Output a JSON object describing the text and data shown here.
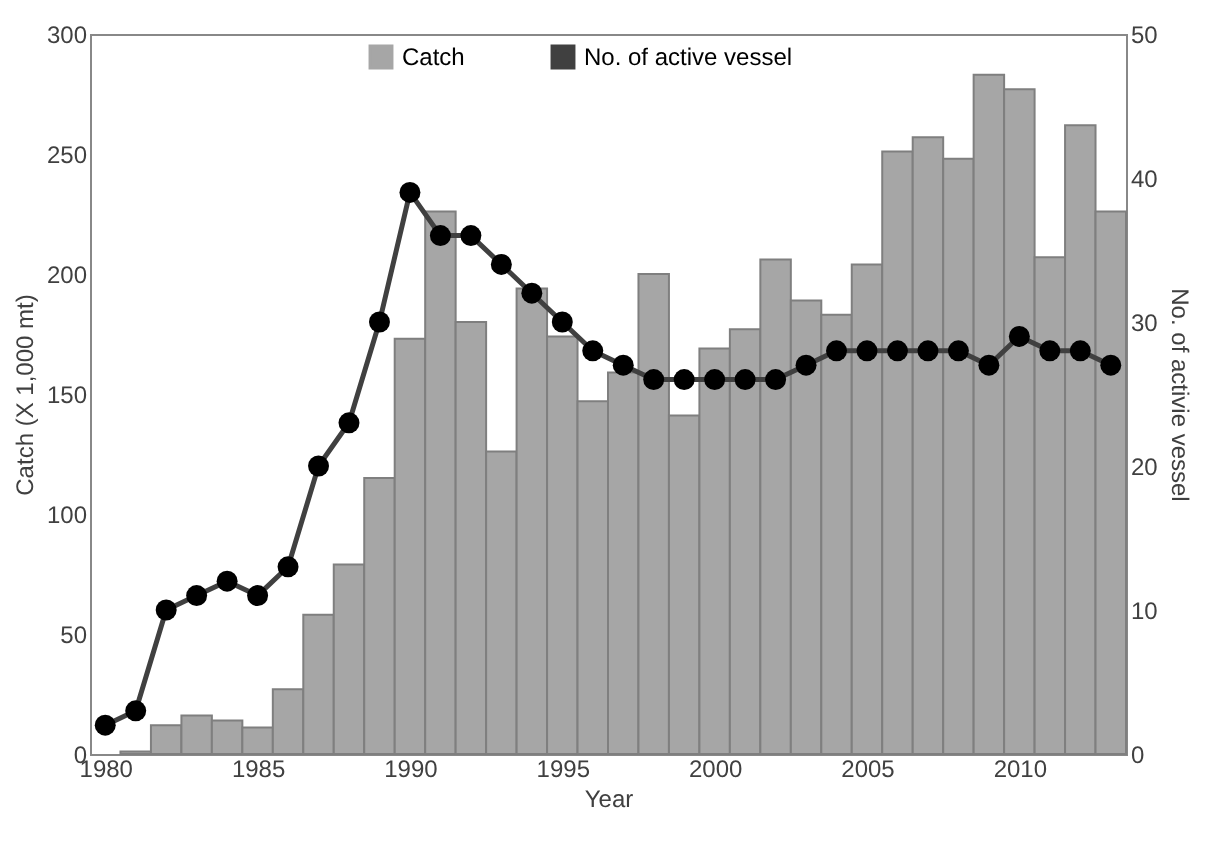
{
  "chart_data": {
    "type": "bar",
    "x": [
      1980,
      1981,
      1982,
      1983,
      1984,
      1985,
      1986,
      1987,
      1988,
      1989,
      1990,
      1991,
      1992,
      1993,
      1994,
      1995,
      1996,
      1997,
      1998,
      1999,
      2000,
      2001,
      2002,
      2003,
      2004,
      2005,
      2006,
      2007,
      2008,
      2009,
      2010,
      2011,
      2012,
      2013
    ],
    "series": [
      {
        "name": "Catch",
        "color": "#a6a6a6",
        "values": [
          0,
          1,
          12,
          16,
          14,
          11,
          27,
          58,
          79,
          115,
          173,
          226,
          180,
          126,
          194,
          174,
          147,
          159,
          200,
          141,
          169,
          177,
          206,
          189,
          183,
          204,
          251,
          257,
          248,
          283,
          277,
          207,
          262,
          226
        ]
      },
      {
        "name": "No. of active vessel",
        "type": "line",
        "axis": "y2",
        "color": "#404040",
        "values": [
          2,
          3,
          10,
          11,
          12,
          11,
          13,
          20,
          23,
          30,
          39,
          36,
          36,
          34,
          32,
          30,
          28,
          27,
          26,
          26,
          26,
          26,
          26,
          27,
          28,
          28,
          28,
          28,
          28,
          27,
          29,
          28,
          28,
          27
        ]
      }
    ],
    "xlabel": "Year",
    "ylabel": "Catch (X 1,000 mt)",
    "y2label": "No. of activie vessel",
    "xlim": [
      1979.5,
      2013.5
    ],
    "xticks": [
      1980,
      1985,
      1990,
      1995,
      2000,
      2005,
      2010
    ],
    "ylim": [
      0,
      300
    ],
    "yticks": [
      0,
      50,
      100,
      150,
      200,
      250,
      300
    ],
    "y2lim": [
      0,
      50
    ],
    "y2ticks": [
      0,
      10,
      20,
      30,
      40,
      50
    ],
    "legend": "top",
    "marker": "circle"
  }
}
